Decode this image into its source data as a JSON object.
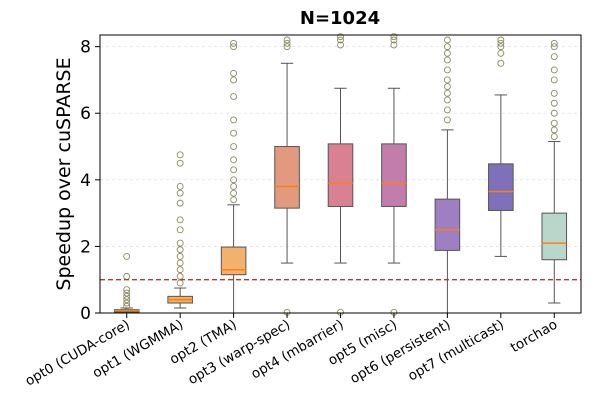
{
  "chart_data": {
    "type": "box",
    "title": "N=1024",
    "y_label": "Speedup over cuSPARSE",
    "categories": [
      "opt0 (CUDA-core)",
      "opt1 (WGMMA)",
      "opt2 (TMA)",
      "opt3 (warp-spec)",
      "opt4 (mbarrier)",
      "opt5 (misc)",
      "opt6 (persistent)",
      "opt7 (multicast)",
      "torchao"
    ],
    "boxes": [
      {
        "whislo": 0,
        "q1": 0.03,
        "med": 0.07,
        "q3": 0.1,
        "whishi": 0.15,
        "fliers": [
          0.2,
          0.3,
          0.4,
          0.5,
          0.6,
          0.7,
          1.1,
          1.7
        ],
        "color": "#e9a36a"
      },
      {
        "whislo": 0.15,
        "q1": 0.3,
        "med": 0.4,
        "q3": 0.5,
        "whishi": 0.75,
        "fliers": [
          0.9,
          1.1,
          1.3,
          1.5,
          1.7,
          1.9,
          2.1,
          2.5,
          2.8,
          3.3,
          3.6,
          3.8,
          4.5,
          4.75
        ],
        "color": "#f0b25e"
      },
      {
        "whislo": 0,
        "q1": 1.15,
        "med": 1.3,
        "q3": 1.98,
        "whishi": 3.25,
        "fliers": [
          3.4,
          3.6,
          3.8,
          4.0,
          4.3,
          4.6,
          5.0,
          5.4,
          5.8,
          6.5,
          7.0,
          7.2,
          8.0,
          8.1
        ],
        "color": "#f2b26e"
      },
      {
        "whislo": 1.5,
        "q1": 3.15,
        "med": 3.8,
        "q3": 5.0,
        "whishi": 7.5,
        "fliers": [
          0.02,
          8.0,
          8.1,
          8.2
        ],
        "color": "#e19a7d"
      },
      {
        "whislo": 1.5,
        "q1": 3.2,
        "med": 3.9,
        "q3": 5.08,
        "whishi": 6.75,
        "fliers": [
          0.02,
          8.05,
          8.2,
          8.3
        ],
        "color": "#d98092"
      },
      {
        "whislo": 1.5,
        "q1": 3.2,
        "med": 3.9,
        "q3": 5.08,
        "whishi": 6.75,
        "fliers": [
          0.02,
          8.05,
          8.2,
          8.3
        ],
        "color": "#c27dad"
      },
      {
        "whislo": 0,
        "q1": 1.88,
        "med": 2.5,
        "q3": 3.42,
        "whishi": 5.5,
        "fliers": [
          5.8,
          6.1,
          6.4,
          6.6,
          6.8,
          7.0,
          7.3,
          7.6,
          7.8,
          8.0,
          8.2
        ],
        "color": "#9f7fc4"
      },
      {
        "whislo": 1.7,
        "q1": 3.08,
        "med": 3.65,
        "q3": 4.48,
        "whishi": 6.55,
        "fliers": [
          7.5,
          7.8,
          8.0,
          8.1,
          8.2
        ],
        "color": "#7e70bb"
      },
      {
        "whislo": 0.3,
        "q1": 1.6,
        "med": 2.1,
        "q3": 3.0,
        "whishi": 5.15,
        "fliers": [
          5.3,
          5.5,
          5.7,
          6.0,
          6.3,
          6.6,
          7.0,
          7.3,
          7.7,
          8.0,
          8.1
        ],
        "color": "#b9d6ca"
      }
    ],
    "reference_line": 1.0,
    "ylim": [
      0,
      8.35
    ],
    "yticks": [
      0,
      2,
      4,
      6,
      8
    ],
    "grid": true
  }
}
